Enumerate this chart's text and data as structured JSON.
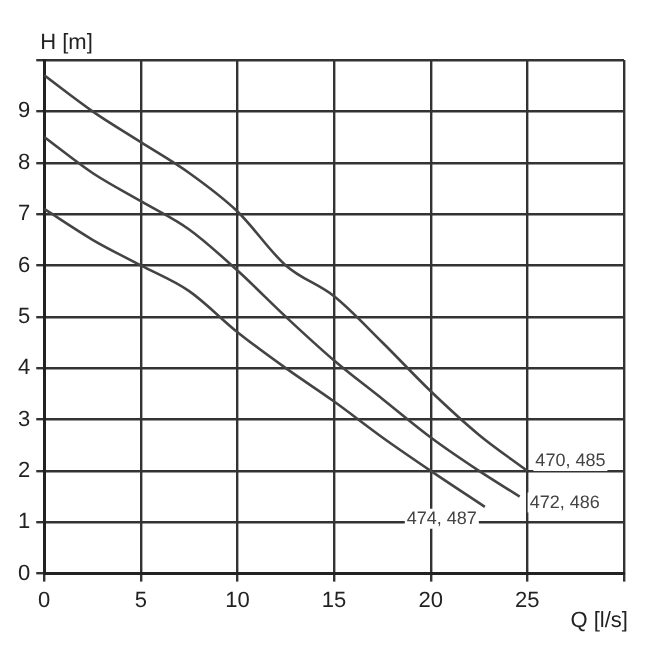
{
  "chart_data": {
    "type": "line",
    "xlabel": "Q [l/s]",
    "ylabel": "H [m]",
    "xlim": [
      0,
      30
    ],
    "ylim": [
      0,
      10
    ],
    "xticks": [
      0,
      5,
      10,
      15,
      20,
      25,
      {
        "value": 30,
        "label": null
      }
    ],
    "yticks": [
      0,
      1,
      2,
      3,
      4,
      5,
      6,
      7,
      8,
      9,
      {
        "value": 10,
        "label": null
      }
    ],
    "grid": true,
    "legend": false,
    "marker": "none",
    "line_style": "solid",
    "series": [
      {
        "name": "470, 485",
        "color": "#444444",
        "x": [
          0,
          2.5,
          5,
          7.5,
          10,
          12.5,
          15,
          17.5,
          20,
          22.5,
          25
        ],
        "values": [
          9.7,
          9.0,
          8.4,
          7.8,
          7.05,
          6.0,
          5.4,
          4.5,
          3.55,
          2.7,
          2.0
        ]
      },
      {
        "name": "472, 486",
        "color": "#444444",
        "x": [
          0,
          2.5,
          5,
          7.5,
          10,
          12.5,
          15,
          17.5,
          20,
          22.5,
          24.6
        ],
        "values": [
          8.5,
          7.8,
          7.25,
          6.7,
          5.9,
          5.0,
          4.15,
          3.4,
          2.65,
          2.0,
          1.5
        ]
      },
      {
        "name": "474, 487",
        "color": "#444444",
        "x": [
          0,
          2.5,
          5,
          7.5,
          10,
          12.5,
          15,
          17.5,
          20,
          22.8
        ],
        "values": [
          7.1,
          6.5,
          6.0,
          5.5,
          4.7,
          4.0,
          3.35,
          2.65,
          2.0,
          1.3
        ]
      }
    ]
  }
}
